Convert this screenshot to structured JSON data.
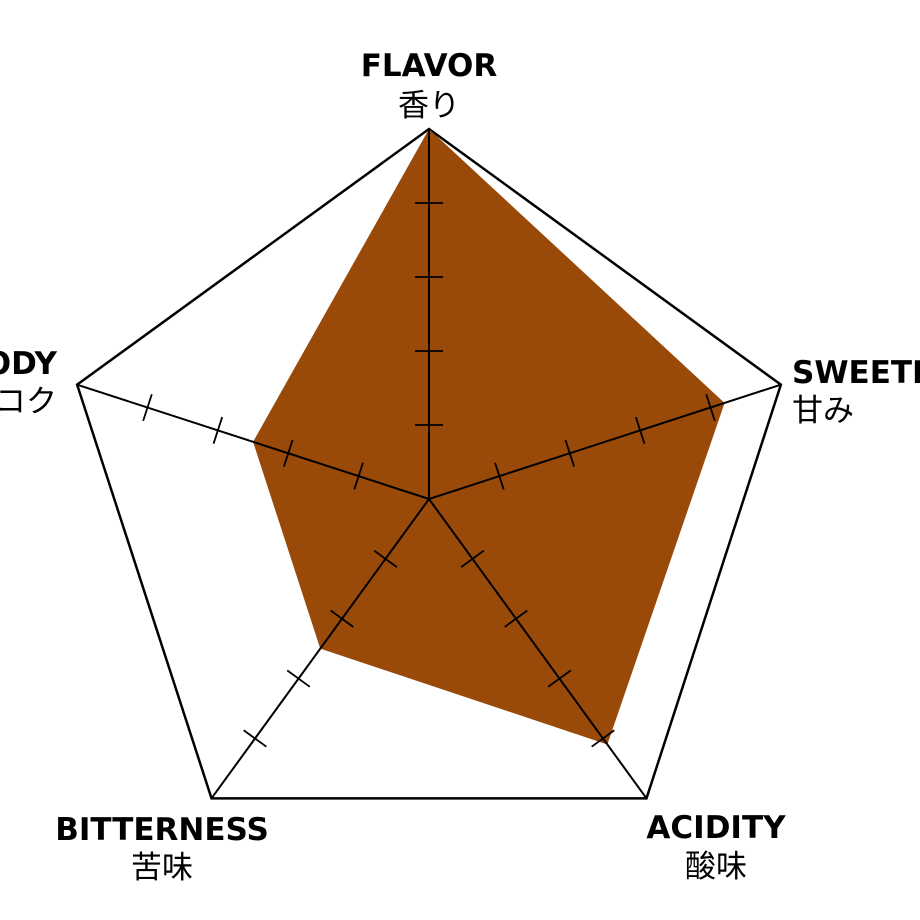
{
  "chart_data": {
    "type": "radar",
    "max": 5,
    "axes": [
      {
        "label": "FLAVOR",
        "label_jp": "香り",
        "value": 5.0
      },
      {
        "label": "SWEETNESS",
        "label_jp": "甘み",
        "value": 4.2
      },
      {
        "label": "ACIDITY",
        "label_jp": "酸味",
        "value": 4.1
      },
      {
        "label": "BITTERNESS",
        "label_jp": "苦味",
        "value": 2.5
      },
      {
        "label": "BODY",
        "label_jp": "コク",
        "value": 2.5
      }
    ],
    "fill_color": "#994a08",
    "outline_color": "#000000",
    "legend": "none",
    "grid": "axis ticks only"
  }
}
